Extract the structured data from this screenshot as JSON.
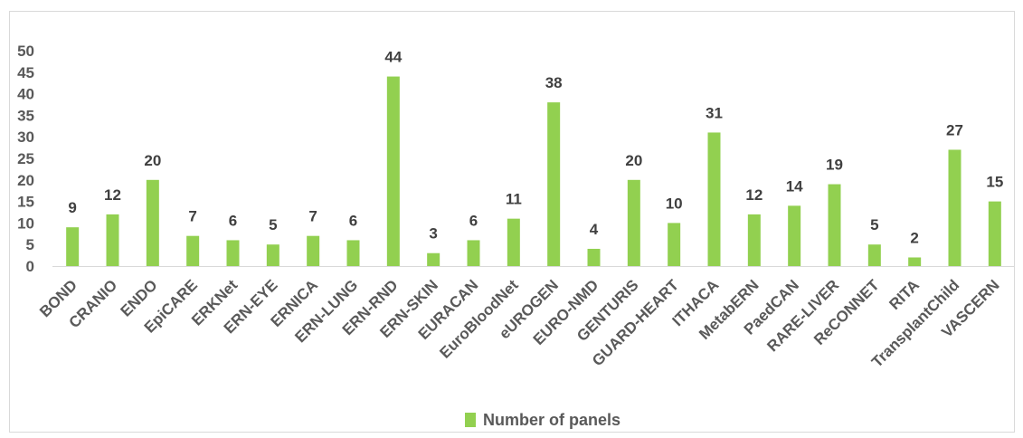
{
  "chart_data": {
    "type": "bar",
    "categories": [
      "BOND",
      "CRANIO",
      "ENDO",
      "EpiCARE",
      "ERKNet",
      "ERN-EYE",
      "ERNICA",
      "ERN-LUNG",
      "ERN-RND",
      "ERN-SKIN",
      "EURACAN",
      "EuroBloodNet",
      "eUROGEN",
      "EURO-NMD",
      "GENTURIS",
      "GUARD-HEART",
      "ITHACA",
      "MetabERN",
      "PaedCAN",
      "RARE-LIVER",
      "ReCONNET",
      "RITA",
      "TransplantChild",
      "VASCERN"
    ],
    "series": [
      {
        "name": "Number of panels",
        "values": [
          9,
          12,
          20,
          7,
          6,
          5,
          7,
          6,
          44,
          3,
          6,
          11,
          38,
          4,
          20,
          10,
          31,
          12,
          14,
          19,
          5,
          2,
          27,
          15
        ],
        "color": "#92d050"
      }
    ],
    "title": "",
    "xlabel": "",
    "ylabel": "",
    "ylim": [
      0,
      50
    ],
    "yticks": [
      0,
      5,
      10,
      15,
      20,
      25,
      30,
      35,
      40,
      45,
      50
    ],
    "grid": false,
    "data_labels": true,
    "legend": "bottom"
  }
}
